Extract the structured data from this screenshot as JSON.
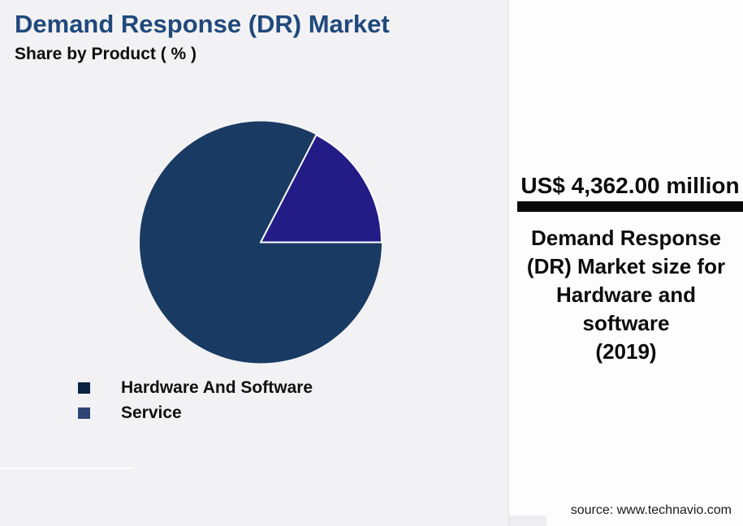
{
  "header": {
    "title": "Demand Response (DR) Market",
    "subtitle": "Share by Product ( % )",
    "title_color": "#20497c"
  },
  "chart_data": {
    "type": "pie",
    "title": "Demand Response (DR) Market",
    "subtitle": "Share by Product ( % )",
    "labels": [
      "Hardware And Software",
      "Service"
    ],
    "values": [
      82.6,
      17.4
    ],
    "colors": [
      "#193a62",
      "#231c86"
    ],
    "slice_border_color": "#ffffff",
    "legend_position": "bottom-left",
    "start_angle_deg": 0,
    "direction": "counterclockwise"
  },
  "legend": {
    "items": [
      {
        "label": "Hardware And Software",
        "color": "#0d2342"
      },
      {
        "label": "Service",
        "color": "#2f4472"
      }
    ]
  },
  "panel": {
    "value": "US$ 4,362.00 million",
    "description": "Demand Response\n(DR) Market size for\nHardware and\nsoftware\n(2019)",
    "source": "source: www.technavio.com",
    "divider_color": "#0a0a0a",
    "bg": "#fdfdfe"
  }
}
